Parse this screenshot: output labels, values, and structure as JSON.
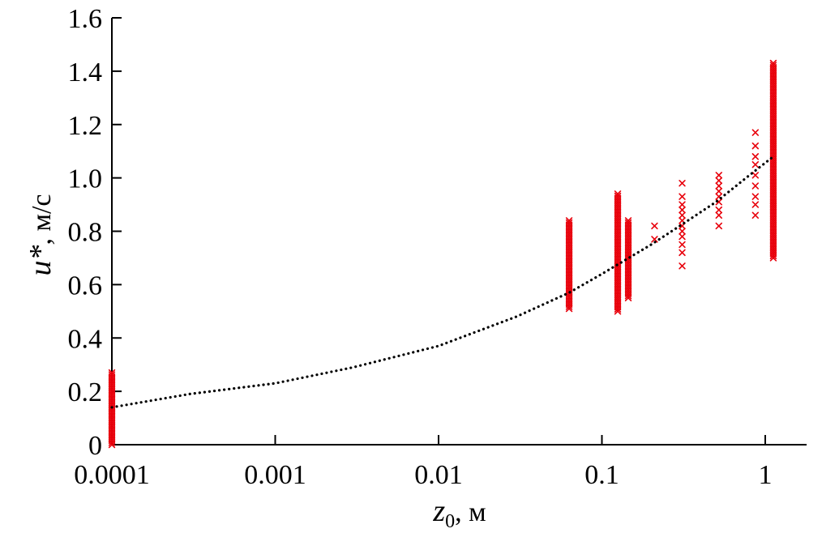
{
  "chart_data": {
    "type": "scatter",
    "title": "",
    "x_scale": "log",
    "xlim": [
      0.0001,
      1.55
    ],
    "ylim": [
      0,
      1.6
    ],
    "x_ticks": [
      {
        "value": 0.0001,
        "label": "0.0001"
      },
      {
        "value": 0.001,
        "label": "0.001"
      },
      {
        "value": 0.01,
        "label": "0.01"
      },
      {
        "value": 0.1,
        "label": "0.1"
      },
      {
        "value": 1,
        "label": "1"
      }
    ],
    "y_ticks": [
      {
        "value": 0,
        "label": "0"
      },
      {
        "value": 0.2,
        "label": "0.2"
      },
      {
        "value": 0.4,
        "label": "0.4"
      },
      {
        "value": 0.6,
        "label": "0.6"
      },
      {
        "value": 0.8,
        "label": "0.8"
      },
      {
        "value": 1.0,
        "label": "1.0"
      },
      {
        "value": 1.2,
        "label": "1.2"
      },
      {
        "value": 1.4,
        "label": "1.4"
      },
      {
        "value": 1.6,
        "label": "1.6"
      }
    ],
    "xlabel": {
      "symbol": "z",
      "subscript": "0",
      "unit": ", м"
    },
    "ylabel": {
      "symbol": "u*",
      "unit": ", м/с"
    },
    "grid": false,
    "marker_color": "#e8000b",
    "fit_color": "#000000",
    "clusters": [
      {
        "x": 0.0001,
        "y_min": 0.0,
        "y_max": 0.27,
        "dense": true
      },
      {
        "x": 0.063,
        "y_min": 0.51,
        "y_max": 0.84,
        "dense": true
      },
      {
        "x": 0.125,
        "y_min": 0.5,
        "y_max": 0.94,
        "dense": true
      },
      {
        "x": 0.145,
        "y_min": 0.55,
        "y_max": 0.84,
        "dense": true
      },
      {
        "x": 0.21,
        "y_values": [
          0.77,
          0.82
        ]
      },
      {
        "x": 0.31,
        "y_values": [
          0.67,
          0.72,
          0.75,
          0.78,
          0.8,
          0.82,
          0.84,
          0.86,
          0.88,
          0.9,
          0.93,
          0.98
        ]
      },
      {
        "x": 0.52,
        "y_values": [
          0.82,
          0.86,
          0.88,
          0.91,
          0.93,
          0.95,
          0.97,
          0.99,
          1.01
        ]
      },
      {
        "x": 0.87,
        "y_values": [
          0.86,
          0.9,
          0.93,
          0.97,
          1.01,
          1.05,
          1.08,
          1.12,
          1.17
        ]
      },
      {
        "x": 1.12,
        "y_min": 0.7,
        "y_max": 1.43,
        "dense": true
      }
    ],
    "fit_curve": {
      "x": [
        0.0001,
        0.0003,
        0.001,
        0.003,
        0.01,
        0.03,
        0.063,
        0.1,
        0.2,
        0.3,
        0.5,
        0.8,
        1.12
      ],
      "y": [
        0.14,
        0.19,
        0.23,
        0.29,
        0.37,
        0.48,
        0.57,
        0.64,
        0.75,
        0.82,
        0.91,
        1.01,
        1.08
      ]
    }
  }
}
